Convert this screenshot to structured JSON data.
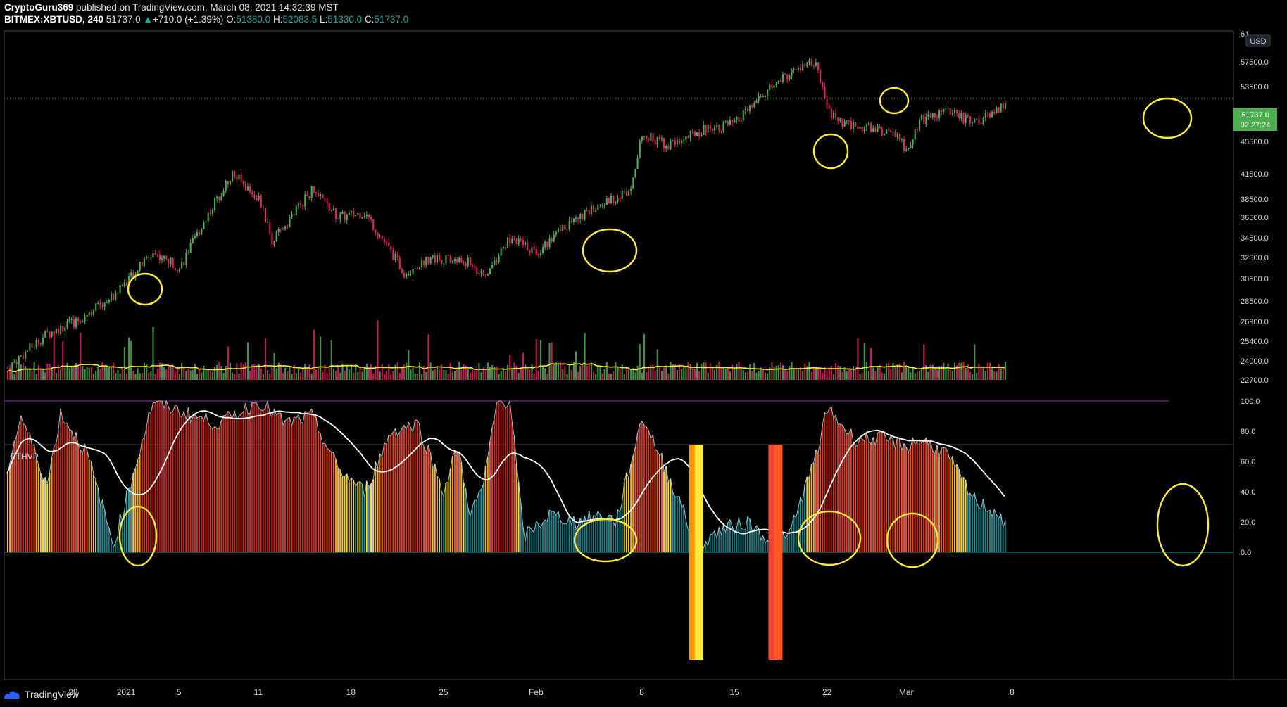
{
  "header": {
    "author": "CryptoGuru369",
    "published": "published on TradingView.com, March 08, 2021 14:32:39 MST",
    "symbol": "BITMEX:XBTUSD, 240",
    "last": "51737.0",
    "change": "+710.0 (+1.39%)",
    "o_label": "O:",
    "o": "51380.0",
    "h_label": "H:",
    "h": "52083.5",
    "l_label": "L:",
    "l": "51330.0",
    "c_label": "C:",
    "c": "51737.0"
  },
  "currency_badge": "USD",
  "price_badge": {
    "price": "51737.0",
    "countdown": "02:27:24"
  },
  "indicator_label": "CTHVP",
  "footer": {
    "brand": "TradingView"
  },
  "colors": {
    "bull": "#4caf50",
    "bear": "#e91e63",
    "volume_ma": "#ffeb3b",
    "osc_low": "#26a0a8",
    "osc_high": "#b71c1c",
    "osc_signal": "#ffffff",
    "level_100": "#9c27b0",
    "annotation": "#ffeb3b",
    "price_badge": "#4caf50"
  },
  "chart_data": [
    {
      "type": "candlestick",
      "title": "",
      "price_axis_ticks": [
        "22700.0",
        "24000.0",
        "25400.0",
        "26900.0",
        "28500.0",
        "30500.0",
        "32500.0",
        "34500.0",
        "36500.0",
        "38500.0",
        "41500.0",
        "45500.0",
        "49500.0",
        "53500.0",
        "57500.0"
      ],
      "price_axis_top_label": "61",
      "x_ticks": [
        "28",
        "2021",
        "5",
        "11",
        "18",
        "25",
        "Feb",
        "8",
        "15",
        "22",
        "Mar",
        "8"
      ],
      "approx_close_path": [
        {
          "x": "Dec 23",
          "close": 23500
        },
        {
          "x": "Dec 26",
          "close": 26000
        },
        {
          "x": "Dec 28",
          "close": 26800
        },
        {
          "x": "Dec 31",
          "close": 29000
        },
        {
          "x": "Jan 2",
          "close": 33000
        },
        {
          "x": "Jan 4",
          "close": 31500
        },
        {
          "x": "Jan 8",
          "close": 41500
        },
        {
          "x": "Jan 10",
          "close": 38500
        },
        {
          "x": "Jan 11",
          "close": 34000
        },
        {
          "x": "Jan 14",
          "close": 39500
        },
        {
          "x": "Jan 16",
          "close": 36500
        },
        {
          "x": "Jan 18",
          "close": 37000
        },
        {
          "x": "Jan 21",
          "close": 31000
        },
        {
          "x": "Jan 23",
          "close": 32500
        },
        {
          "x": "Jan 26",
          "close": 32000
        },
        {
          "x": "Jan 27",
          "close": 30500
        },
        {
          "x": "Jan 29",
          "close": 34500
        },
        {
          "x": "Jan 31",
          "close": 33000
        },
        {
          "x": "Feb 2",
          "close": 35500
        },
        {
          "x": "Feb 5",
          "close": 38000
        },
        {
          "x": "Feb 7",
          "close": 39500
        },
        {
          "x": "Feb 8",
          "close": 46500
        },
        {
          "x": "Feb 10",
          "close": 45000
        },
        {
          "x": "Feb 13",
          "close": 47500
        },
        {
          "x": "Feb 15",
          "close": 48000
        },
        {
          "x": "Feb 17",
          "close": 52000
        },
        {
          "x": "Feb 19",
          "close": 55500
        },
        {
          "x": "Feb 21",
          "close": 57500
        },
        {
          "x": "Feb 22",
          "close": 50000
        },
        {
          "x": "Feb 23",
          "close": 48000
        },
        {
          "x": "Feb 25",
          "close": 47500
        },
        {
          "x": "Feb 27",
          "close": 46500
        },
        {
          "x": "Feb 28",
          "close": 44500
        },
        {
          "x": "Mar 1",
          "close": 48500
        },
        {
          "x": "Mar 3",
          "close": 50000
        },
        {
          "x": "Mar 5",
          "close": 48000
        },
        {
          "x": "Mar 6",
          "close": 49000
        },
        {
          "x": "Mar 8",
          "close": 51737
        }
      ],
      "current_price": 51737,
      "volume_ma_relative_level": "low, flat"
    },
    {
      "type": "bar",
      "title": "CTHVP",
      "y_ticks": [
        "0.0",
        "20.0",
        "40.0",
        "60.0",
        "80.0",
        "100.0"
      ],
      "ylim": [
        0,
        100
      ],
      "level_line": 100,
      "approx_values": [
        {
          "x": "Dec 23",
          "value": 55
        },
        {
          "x": "Dec 24",
          "value": 90
        },
        {
          "x": "Dec 26",
          "value": 45
        },
        {
          "x": "Dec 27",
          "value": 92
        },
        {
          "x": "Dec 29",
          "value": 65
        },
        {
          "x": "Dec 31",
          "value": 5
        },
        {
          "x": "Jan 2",
          "value": 100
        },
        {
          "x": "Jan 5",
          "value": 90
        },
        {
          "x": "Jan 7",
          "value": 85
        },
        {
          "x": "Jan 9",
          "value": 95
        },
        {
          "x": "Jan 10",
          "value": 100
        },
        {
          "x": "Jan 12",
          "value": 85
        },
        {
          "x": "Jan 14",
          "value": 90
        },
        {
          "x": "Jan 16",
          "value": 55
        },
        {
          "x": "Jan 18",
          "value": 40
        },
        {
          "x": "Jan 20",
          "value": 80
        },
        {
          "x": "Jan 22",
          "value": 85
        },
        {
          "x": "Jan 24",
          "value": 40
        },
        {
          "x": "Jan 25",
          "value": 70
        },
        {
          "x": "Jan 26",
          "value": 25
        },
        {
          "x": "Jan 27",
          "value": 45
        },
        {
          "x": "Jan 28",
          "value": 100
        },
        {
          "x": "Jan 29",
          "value": 100
        },
        {
          "x": "Jan 30",
          "value": 10
        },
        {
          "x": "Feb 1",
          "value": 25
        },
        {
          "x": "Feb 3",
          "value": 20
        },
        {
          "x": "Feb 5",
          "value": 25
        },
        {
          "x": "Feb 6",
          "value": 20
        },
        {
          "x": "Feb 8",
          "value": 90
        },
        {
          "x": "Feb 9",
          "value": 70
        },
        {
          "x": "Feb 11",
          "value": 30
        },
        {
          "x": "Feb 12",
          "value": 3
        },
        {
          "x": "Feb 14",
          "value": 15
        },
        {
          "x": "Feb 16",
          "value": 20
        },
        {
          "x": "Feb 18",
          "value": 5
        },
        {
          "x": "Feb 19",
          "value": 10
        },
        {
          "x": "Feb 21",
          "value": 60
        },
        {
          "x": "Feb 22",
          "value": 95
        },
        {
          "x": "Feb 24",
          "value": 75
        },
        {
          "x": "Feb 26",
          "value": 75
        },
        {
          "x": "Feb 28",
          "value": 70
        },
        {
          "x": "Mar 1",
          "value": 75
        },
        {
          "x": "Mar 3",
          "value": 65
        },
        {
          "x": "Mar 5",
          "value": 35
        },
        {
          "x": "Mar 7",
          "value": 25
        },
        {
          "x": "Mar 8",
          "value": 5
        }
      ],
      "highlight_bands": [
        {
          "x": "Feb 12",
          "colors": [
            "#ff9800",
            "#ffeb3b"
          ]
        },
        {
          "x": "Feb 18",
          "colors": [
            "#f44336",
            "#ff5722"
          ]
        }
      ]
    }
  ]
}
